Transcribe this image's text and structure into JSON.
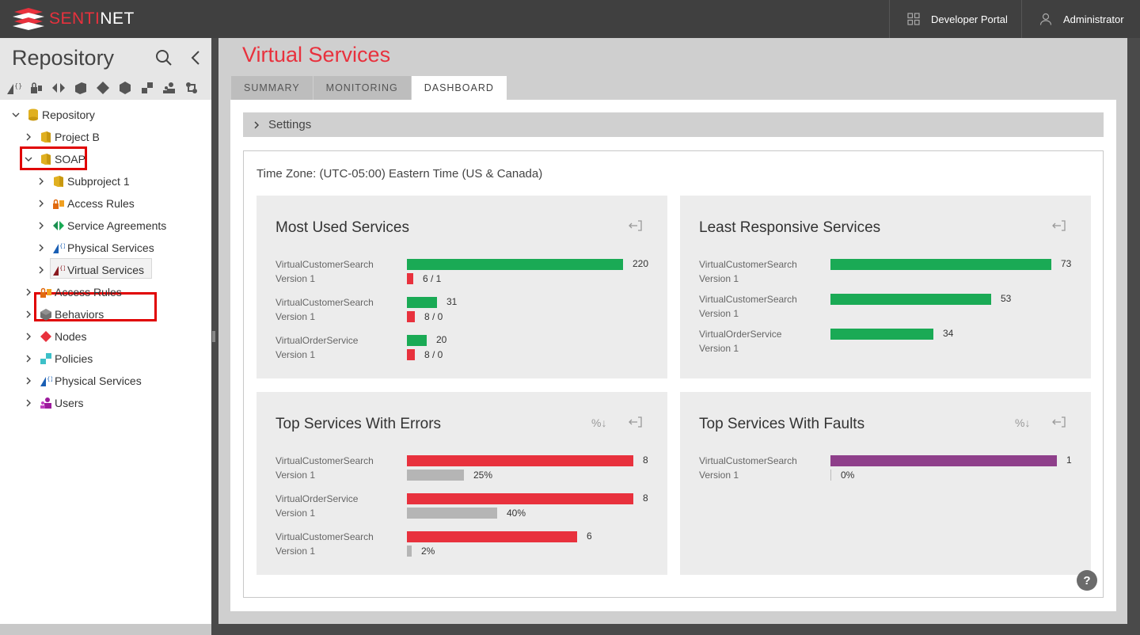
{
  "app": {
    "logo": "SENTINET",
    "logo_part1": "SENTI",
    "logo_part2": "NET"
  },
  "topbar": {
    "developer_portal": "Developer Portal",
    "user": "Administrator"
  },
  "sidebar": {
    "title": "Repository",
    "tree": [
      {
        "label": "Repository"
      },
      {
        "label": "Project B"
      },
      {
        "label": "SOAP"
      },
      {
        "label": "Subproject 1"
      },
      {
        "label": "Access Rules"
      },
      {
        "label": "Service Agreements"
      },
      {
        "label": "Physical Services"
      },
      {
        "label": "Virtual Services"
      },
      {
        "label": "Access Rules"
      },
      {
        "label": "Behaviors"
      },
      {
        "label": "Nodes"
      },
      {
        "label": "Policies"
      },
      {
        "label": "Physical Services"
      },
      {
        "label": "Users"
      }
    ]
  },
  "main": {
    "title": "Virtual Services",
    "tabs": [
      "SUMMARY",
      "MONITORING",
      "DASHBOARD"
    ],
    "active_tab": "DASHBOARD",
    "settings_label": "Settings",
    "timezone": "Time Zone: (UTC-05:00) Eastern Time (US & Canada)"
  },
  "colors": {
    "green": "#1aaa55",
    "red": "#e8313d",
    "gray": "#b5b5b5",
    "purple": "#8e3f8a",
    "accent": "#e8313d"
  },
  "cards": [
    {
      "title": "Most Used Services",
      "max": 220,
      "rows": [
        {
          "name": "VirtualCustomerSearch",
          "version": "Version 1",
          "value": 220,
          "value_label": "220",
          "sub_label": "6 / 1",
          "sub_fraction": 0.03
        },
        {
          "name": "VirtualCustomerSearch",
          "version": "Version 1",
          "value": 31,
          "value_label": "31",
          "sub_label": "8 / 0",
          "sub_fraction": 0.035
        },
        {
          "name": "VirtualOrderService",
          "version": "Version 1",
          "value": 20,
          "value_label": "20",
          "sub_label": "8 / 0",
          "sub_fraction": 0.035
        }
      ]
    },
    {
      "title": "Least Responsive Services",
      "max": 73,
      "rows": [
        {
          "name": "VirtualCustomerSearch",
          "version": "Version 1",
          "value": 73,
          "value_label": "73"
        },
        {
          "name": "VirtualCustomerSearch",
          "version": "Version 1",
          "value": 53,
          "value_label": "53"
        },
        {
          "name": "VirtualOrderService",
          "version": "Version 1",
          "value": 34,
          "value_label": "34"
        }
      ]
    },
    {
      "title": "Top Services With Errors",
      "action_label": "%↓",
      "max": 8,
      "rows": [
        {
          "name": "VirtualCustomerSearch",
          "version": "Version 1",
          "value": 8,
          "value_label": "8",
          "sub_label": "25%",
          "sub_fraction": 0.25
        },
        {
          "name": "VirtualOrderService",
          "version": "Version 1",
          "value": 8,
          "value_label": "8",
          "sub_label": "40%",
          "sub_fraction": 0.4
        },
        {
          "name": "VirtualCustomerSearch",
          "version": "Version 1",
          "value": 6,
          "value_label": "6",
          "sub_label": "2%",
          "sub_fraction": 0.02
        }
      ]
    },
    {
      "title": "Top Services With Faults",
      "action_label": "%↓",
      "max": 1,
      "rows": [
        {
          "name": "VirtualCustomerSearch",
          "version": "Version 1",
          "value": 1,
          "value_label": "1",
          "sub_label": "0%",
          "sub_fraction": 0
        }
      ]
    }
  ],
  "help_label": "?"
}
